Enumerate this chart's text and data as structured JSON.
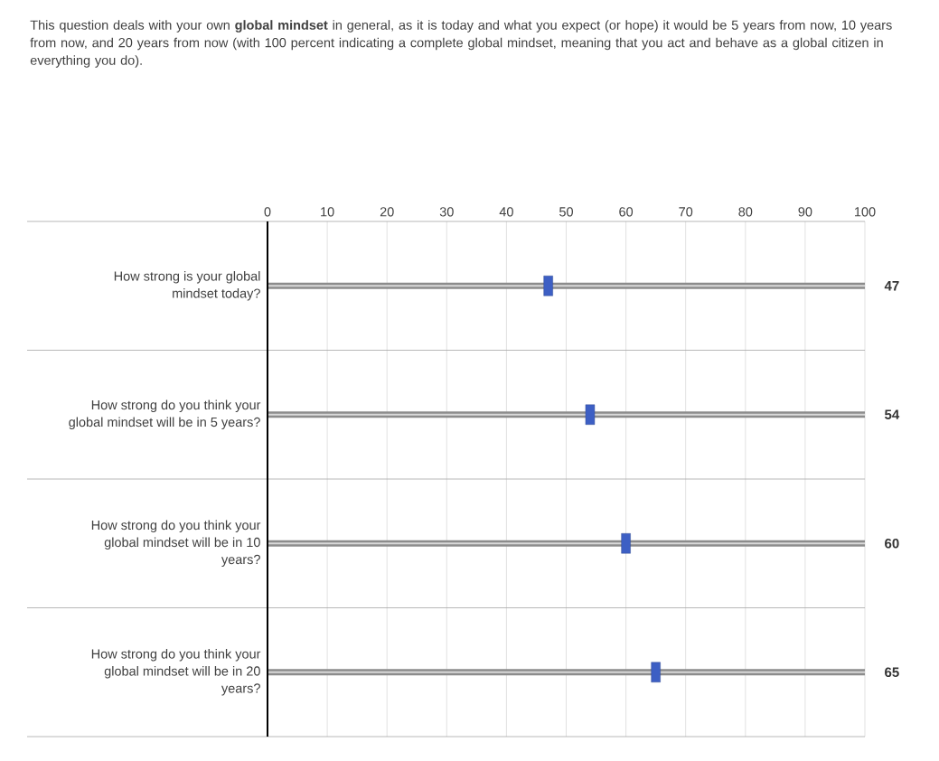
{
  "chart_data": {
    "type": "scatter",
    "orientation": "horizontal",
    "title": "This question deals with your own **global mindset** in general, as it is today and what you expect (or hope) it would be 5 years from now, 10 years from now, and 20 years from now (with 100 percent indicating a complete global mindset, meaning that you act and behave as a global citizen in everything you do).",
    "categories": [
      "How strong is your global mindset today?",
      "How strong do you think your global mindset will be in 5 years?",
      "How strong do you think your global mindset will be in 10 years?",
      "How strong do you think your global mindset will be in 20 years?"
    ],
    "values": [
      47,
      54,
      60,
      65
    ],
    "color": "#3d5fc4",
    "marker": "square",
    "data_labels": true,
    "grid": "x",
    "xlim": [
      0,
      100
    ],
    "xticks": [
      0,
      10,
      20,
      30,
      40,
      50,
      60,
      70,
      80,
      90,
      100
    ]
  }
}
